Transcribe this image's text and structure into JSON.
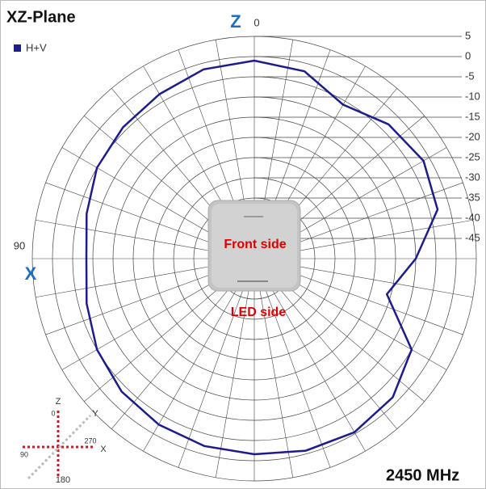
{
  "chart_data": {
    "type": "polar",
    "title": "XZ-Plane",
    "theta": [
      0,
      15,
      30,
      45,
      60,
      75,
      90,
      105,
      120,
      135,
      150,
      165,
      180,
      195,
      210,
      225,
      240,
      255,
      270,
      285,
      300,
      315,
      330,
      345
    ],
    "series": [
      {
        "name": "H+V",
        "color": "#1c1c8f",
        "values": [
          -1,
          -1.5,
          -3,
          -4,
          -5,
          -7,
          -8.4,
          -7,
          -5,
          -3.5,
          -2.6,
          -2,
          -1.6,
          -0.8,
          -0.4,
          -1.5,
          -5,
          -16,
          -10,
          -3,
          -1.6,
          -3,
          -6,
          -2
        ]
      }
    ],
    "rlim": [
      -50,
      5
    ],
    "rticks": [
      5,
      0,
      -5,
      -10,
      -15,
      -20,
      -25,
      -30,
      -35,
      -40,
      -45
    ],
    "angle_ticks": [
      0,
      90,
      180
    ],
    "grid": true,
    "annotations": [
      "Z",
      "X",
      "Front side",
      "LED side",
      "2450 MHz"
    ],
    "inset_labels": [
      "Z",
      "0",
      "Y",
      "270",
      "X",
      "90",
      "180"
    ]
  }
}
